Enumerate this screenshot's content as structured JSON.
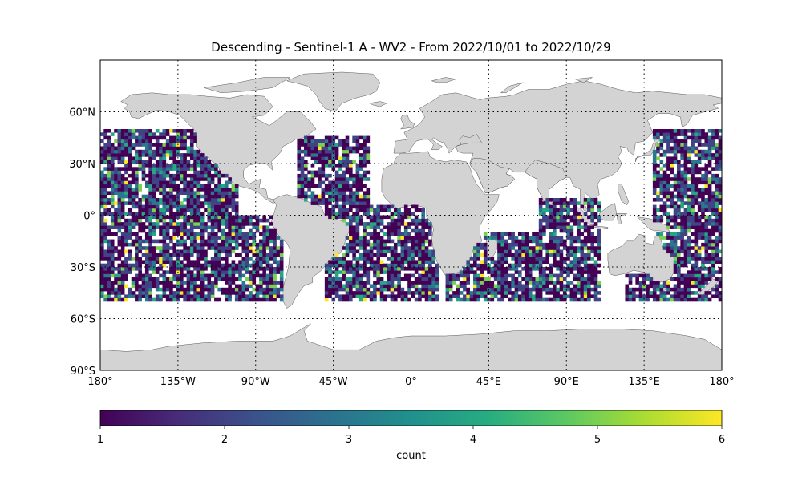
{
  "title": "Descending - Sentinel-1 A - WV2 - From 2022/10/01 to 2022/10/29",
  "map": {
    "projection": "equirectangular",
    "lon_range": [
      -180,
      180
    ],
    "lat_range": [
      -90,
      90
    ],
    "land_color": "#d3d3d3",
    "coastline_color": "#333333",
    "ocean_color": "#ffffff",
    "gridlines": {
      "style": "dotted",
      "lons": [
        -135,
        -90,
        -45,
        0,
        45,
        90,
        135
      ],
      "lats": [
        -60,
        -30,
        0,
        30,
        60
      ]
    },
    "lat_ticks": [
      {
        "value": 60,
        "label": "60°N"
      },
      {
        "value": 30,
        "label": "30°N"
      },
      {
        "value": 0,
        "label": "0°"
      },
      {
        "value": -30,
        "label": "30°S"
      },
      {
        "value": -60,
        "label": "60°S"
      },
      {
        "value": -90,
        "label": "90°S"
      }
    ],
    "lon_ticks": [
      {
        "value": -180,
        "label": "180°"
      },
      {
        "value": -135,
        "label": "135°W"
      },
      {
        "value": -90,
        "label": "90°W"
      },
      {
        "value": -45,
        "label": "45°W"
      },
      {
        "value": 0,
        "label": "0°"
      },
      {
        "value": 45,
        "label": "45°E"
      },
      {
        "value": 90,
        "label": "90°E"
      },
      {
        "value": 135,
        "label": "135°E"
      },
      {
        "value": 180,
        "label": "180°"
      }
    ]
  },
  "chart_data": {
    "type": "heatmap",
    "cell_size_deg": 2,
    "lat_coverage": [
      -50,
      50
    ],
    "colormap": "viridis",
    "data_regions_approx": [
      {
        "name": "North/Central Pacific",
        "lon": [
          -180,
          -100
        ],
        "lat": [
          -50,
          50
        ]
      },
      {
        "name": "Eastern South Pacific",
        "lon": [
          -100,
          -75
        ],
        "lat": [
          -50,
          0
        ]
      },
      {
        "name": "North Atlantic",
        "lon": [
          -65,
          -25
        ],
        "lat": [
          5,
          45
        ]
      },
      {
        "name": "South Atlantic",
        "lon": [
          -50,
          15
        ],
        "lat": [
          -50,
          5
        ]
      },
      {
        "name": "South Indian Ocean",
        "lon": [
          20,
          80
        ],
        "lat": [
          -50,
          -10
        ]
      },
      {
        "name": "Central Indian Ocean",
        "lon": [
          75,
          110
        ],
        "lat": [
          -50,
          10
        ]
      },
      {
        "name": "Southern Ocean south of Australia",
        "lon": [
          125,
          150
        ],
        "lat": [
          -50,
          -35
        ]
      },
      {
        "name": "Western Pacific",
        "lon": [
          140,
          180
        ],
        "lat": [
          -50,
          50
        ]
      }
    ],
    "value_range": [
      1,
      6
    ]
  },
  "colorbar": {
    "label": "count",
    "min": 1,
    "max": 6,
    "tick_labels": [
      "1",
      "2",
      "3",
      "4",
      "5",
      "6"
    ],
    "stops": [
      "#440154",
      "#472c7a",
      "#3b528b",
      "#2c728e",
      "#21908d",
      "#27ad81",
      "#5cc863",
      "#aadc32",
      "#fde725"
    ]
  }
}
